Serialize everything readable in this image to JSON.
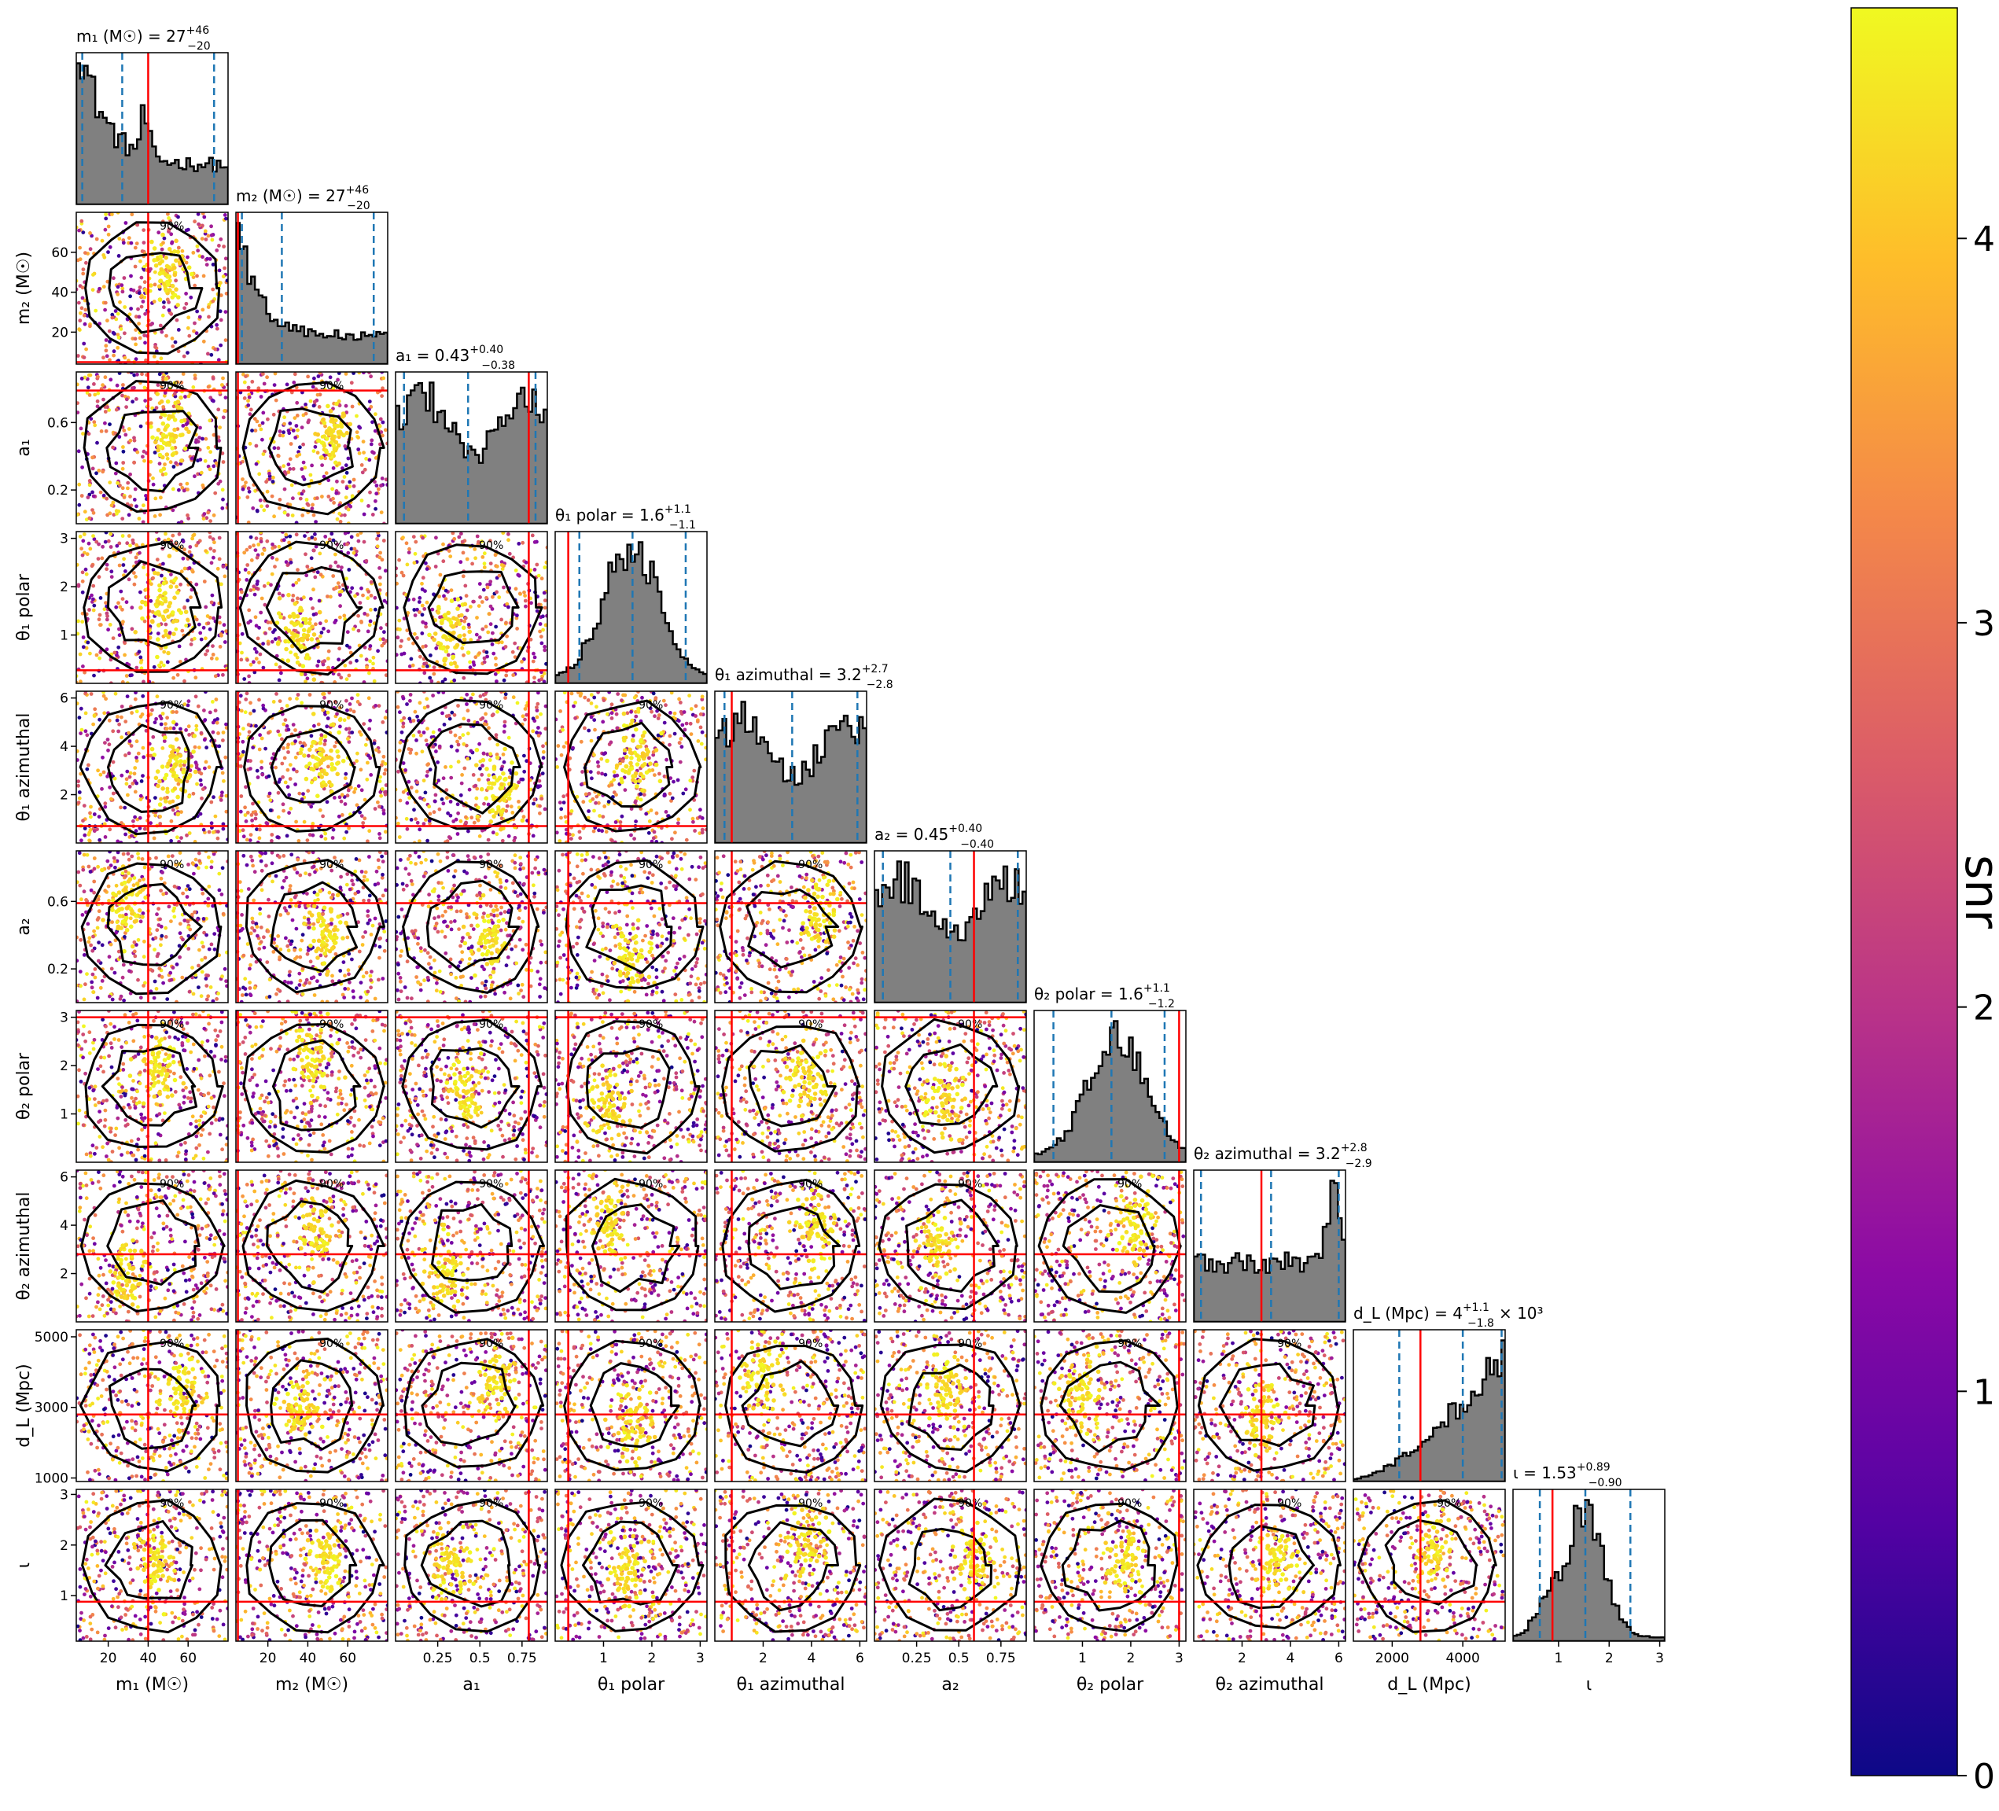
{
  "chart_data": {
    "type": "scatter",
    "subtype": "corner-plot",
    "colormap": "plasma",
    "colormap_stops": [
      "#0d0887",
      "#5302a3",
      "#8b0aa5",
      "#b83289",
      "#db5c68",
      "#f48849",
      "#febd2a",
      "#f0f921"
    ],
    "hist_color": "#808080",
    "quantile_line_color": "#1f77b4",
    "truth_line_color": "#ff0000",
    "contour_levels": [
      "50%",
      "90%"
    ],
    "parameters": [
      {
        "label": "m₁ (M☉)",
        "title_left": "m₁ (M☉) = 27",
        "title_sup": "+46",
        "title_sub": "−20",
        "range": [
          4,
          80
        ],
        "ticks": [
          20,
          40,
          60
        ],
        "median": 27,
        "lo": 7,
        "hi": 73,
        "truth": 40
      },
      {
        "label": "m₂ (M☉)",
        "title_left": "m₂ (M☉) = 27",
        "title_sup": "+46",
        "title_sub": "−20",
        "range": [
          4,
          80
        ],
        "ticks": [
          20,
          40,
          60
        ],
        "median": 27,
        "lo": 7,
        "hi": 73,
        "truth": 5
      },
      {
        "label": "a₁",
        "title_left": "a₁ = 0.43",
        "title_sup": "+0.40",
        "title_sub": "−0.38",
        "range": [
          0,
          0.9
        ],
        "ticks": [
          0.2,
          0.6
        ],
        "xticks": [
          0.25,
          0.5,
          0.75
        ],
        "median": 0.43,
        "lo": 0.05,
        "hi": 0.83,
        "truth": 0.79
      },
      {
        "label": "θ₁ polar",
        "title_left": "θ₁ polar = 1.6",
        "title_sup": "+1.1",
        "title_sub": "−1.1",
        "range": [
          0,
          3.14
        ],
        "ticks": [
          1,
          2,
          3
        ],
        "median": 1.6,
        "lo": 0.5,
        "hi": 2.7,
        "truth": 0.27
      },
      {
        "label": "θ₁ azimuthal",
        "title_left": "θ₁ azimuthal = 3.2",
        "title_sup": "+2.7",
        "title_sub": "−2.8",
        "range": [
          0,
          6.28
        ],
        "ticks": [
          2,
          4,
          6
        ],
        "median": 3.2,
        "lo": 0.4,
        "hi": 5.9,
        "truth": 0.7
      },
      {
        "label": "a₂",
        "title_left": "a₂ = 0.45",
        "title_sup": "+0.40",
        "title_sub": "−0.40",
        "range": [
          0,
          0.9
        ],
        "ticks": [
          0.2,
          0.6
        ],
        "xticks": [
          0.25,
          0.5,
          0.75
        ],
        "median": 0.45,
        "lo": 0.05,
        "hi": 0.85,
        "truth": 0.59
      },
      {
        "label": "θ₂ polar",
        "title_left": "θ₂ polar = 1.6",
        "title_sup": "+1.1",
        "title_sub": "−1.2",
        "range": [
          0,
          3.14
        ],
        "ticks": [
          1,
          2,
          3
        ],
        "median": 1.6,
        "lo": 0.4,
        "hi": 2.7,
        "truth": 3.0
      },
      {
        "label": "θ₂ azimuthal",
        "title_left": "θ₂ azimuthal = 3.2",
        "title_sup": "+2.8",
        "title_sub": "−2.9",
        "range": [
          0,
          6.28
        ],
        "ticks": [
          2,
          4,
          6
        ],
        "median": 3.2,
        "lo": 0.3,
        "hi": 6.0,
        "truth": 2.8
      },
      {
        "label": "d_L (Mpc)",
        "title_left": "d_L (Mpc) = 4",
        "title_sup": "+1.1",
        "title_sub": "−1.8",
        "title_suffix": "× 10³",
        "range": [
          900,
          5200
        ],
        "ticks": [
          1000,
          3000,
          5000
        ],
        "xticks": [
          2000,
          4000
        ],
        "median": 4000,
        "lo": 2200,
        "hi": 5100,
        "truth": 2800
      },
      {
        "label": "ι",
        "title_left": "ι = 1.53",
        "title_sup": "+0.89",
        "title_sub": "−0.90",
        "range": [
          0.1,
          3.1
        ],
        "ticks": [
          1,
          2,
          3
        ],
        "median": 1.53,
        "lo": 0.63,
        "hi": 2.42,
        "truth": 0.88
      }
    ],
    "colorbar": {
      "label": "snr",
      "range": [
        0,
        4.6
      ],
      "ticks": [
        0,
        1,
        2,
        3,
        4
      ]
    }
  }
}
